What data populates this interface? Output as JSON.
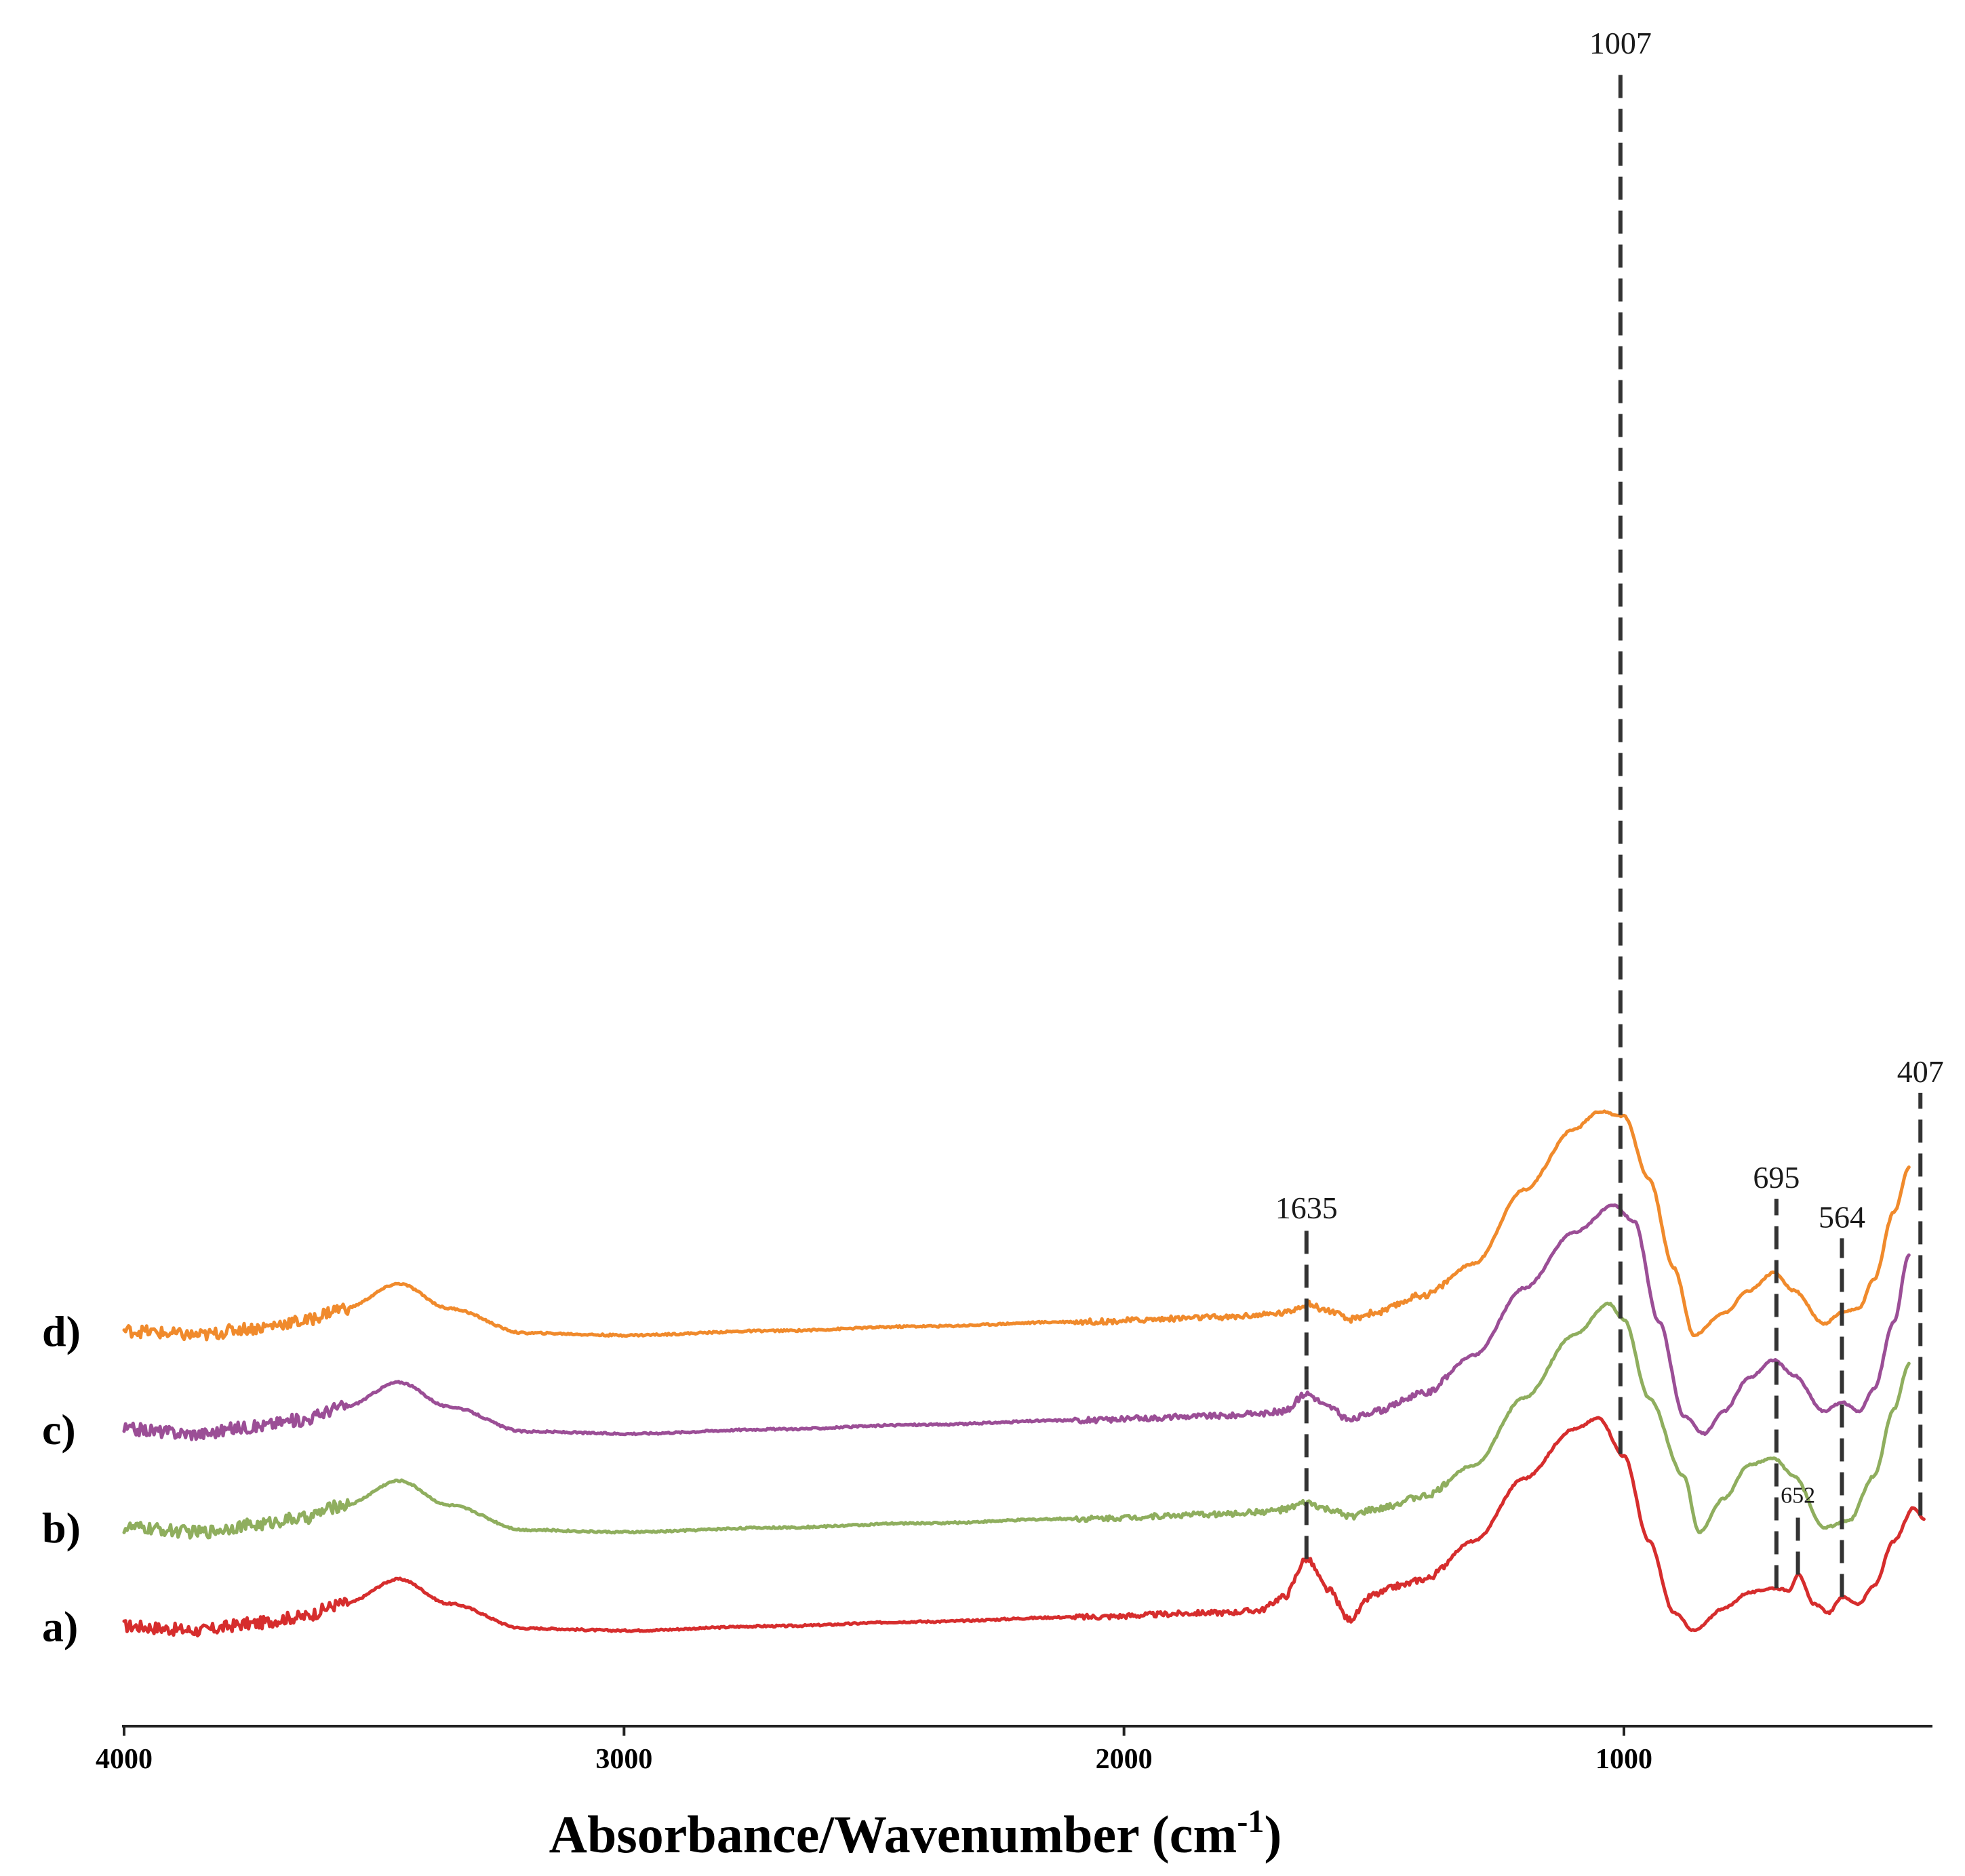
{
  "chart_data": {
    "type": "line",
    "title": "",
    "xlabel": "Absorbance/Wavenumber (cm",
    "xlabel_sup": "-1",
    "xlabel_close": ")",
    "ylabel": "",
    "xlim": [
      4000,
      350
    ],
    "xticks": [
      {
        "value": 4000,
        "label": "4000"
      },
      {
        "value": 3000,
        "label": "3000"
      },
      {
        "value": 2000,
        "label": "2000"
      },
      {
        "value": 1000,
        "label": "1000"
      }
    ],
    "grid": false,
    "legend": "inline labels left",
    "peaks": [
      {
        "value": 1635,
        "label": "1635",
        "from_series": "a",
        "to_series": "d"
      },
      {
        "value": 1007,
        "label": "1007",
        "from_series": "a",
        "to_series": "top"
      },
      {
        "value": 695,
        "label": "695",
        "from_series": "a",
        "to_series": "d"
      },
      {
        "value": 652,
        "label": "652",
        "from_series": "a",
        "to_series": "a"
      },
      {
        "value": 564,
        "label": "564",
        "from_series": "a",
        "to_series": "d"
      },
      {
        "value": 407,
        "label": "407",
        "from_series": "a",
        "to_series": "d"
      }
    ],
    "series": [
      {
        "name": "a)",
        "key": "a",
        "color": "#d62d2d",
        "offset": 0,
        "points": [
          [
            4000,
            0.02
          ],
          [
            3850,
            0.0
          ],
          [
            3750,
            0.03
          ],
          [
            3650,
            0.06
          ],
          [
            3560,
            0.12
          ],
          [
            3450,
            0.23
          ],
          [
            3350,
            0.12
          ],
          [
            3200,
            0.01
          ],
          [
            3000,
            0.0
          ],
          [
            2700,
            0.02
          ],
          [
            2400,
            0.04
          ],
          [
            2100,
            0.06
          ],
          [
            1800,
            0.08
          ],
          [
            1730,
            0.09
          ],
          [
            1680,
            0.15
          ],
          [
            1635,
            0.32
          ],
          [
            1590,
            0.18
          ],
          [
            1550,
            0.05
          ],
          [
            1500,
            0.16
          ],
          [
            1450,
            0.2
          ],
          [
            1400,
            0.23
          ],
          [
            1300,
            0.4
          ],
          [
            1200,
            0.68
          ],
          [
            1100,
            0.9
          ],
          [
            1050,
            0.95
          ],
          [
            1000,
            0.78
          ],
          [
            950,
            0.4
          ],
          [
            900,
            0.08
          ],
          [
            860,
            0.0
          ],
          [
            800,
            0.1
          ],
          [
            750,
            0.17
          ],
          [
            700,
            0.19
          ],
          [
            670,
            0.18
          ],
          [
            652,
            0.25
          ],
          [
            620,
            0.12
          ],
          [
            590,
            0.08
          ],
          [
            564,
            0.15
          ],
          [
            530,
            0.12
          ],
          [
            500,
            0.2
          ],
          [
            460,
            0.4
          ],
          [
            420,
            0.55
          ],
          [
            400,
            0.5
          ]
        ]
      },
      {
        "name": "b)",
        "key": "b",
        "color": "#8fae5e",
        "offset": 0.44,
        "points": [
          [
            4000,
            0.02
          ],
          [
            3850,
            0.0
          ],
          [
            3750,
            0.03
          ],
          [
            3650,
            0.06
          ],
          [
            3560,
            0.12
          ],
          [
            3450,
            0.23
          ],
          [
            3350,
            0.12
          ],
          [
            3200,
            0.01
          ],
          [
            3000,
            0.0
          ],
          [
            2700,
            0.02
          ],
          [
            2400,
            0.04
          ],
          [
            2100,
            0.06
          ],
          [
            1800,
            0.08
          ],
          [
            1730,
            0.09
          ],
          [
            1680,
            0.1
          ],
          [
            1635,
            0.13
          ],
          [
            1590,
            0.1
          ],
          [
            1550,
            0.07
          ],
          [
            1500,
            0.1
          ],
          [
            1400,
            0.16
          ],
          [
            1300,
            0.3
          ],
          [
            1200,
            0.6
          ],
          [
            1100,
            0.88
          ],
          [
            1030,
            1.02
          ],
          [
            1000,
            0.95
          ],
          [
            950,
            0.6
          ],
          [
            880,
            0.25
          ],
          [
            850,
            0.0
          ],
          [
            800,
            0.15
          ],
          [
            750,
            0.3
          ],
          [
            700,
            0.33
          ],
          [
            660,
            0.25
          ],
          [
            600,
            0.02
          ],
          [
            550,
            0.05
          ],
          [
            500,
            0.25
          ],
          [
            460,
            0.55
          ],
          [
            430,
            0.75
          ]
        ]
      },
      {
        "name": "c)",
        "key": "c",
        "color": "#9b4e96",
        "offset": 0.88,
        "points": [
          [
            4000,
            0.02
          ],
          [
            3850,
            0.0
          ],
          [
            3750,
            0.03
          ],
          [
            3650,
            0.06
          ],
          [
            3560,
            0.12
          ],
          [
            3450,
            0.23
          ],
          [
            3350,
            0.12
          ],
          [
            3200,
            0.01
          ],
          [
            3000,
            0.0
          ],
          [
            2700,
            0.02
          ],
          [
            2400,
            0.04
          ],
          [
            2100,
            0.06
          ],
          [
            1800,
            0.08
          ],
          [
            1730,
            0.09
          ],
          [
            1680,
            0.1
          ],
          [
            1635,
            0.18
          ],
          [
            1590,
            0.12
          ],
          [
            1550,
            0.06
          ],
          [
            1500,
            0.1
          ],
          [
            1400,
            0.18
          ],
          [
            1300,
            0.35
          ],
          [
            1200,
            0.65
          ],
          [
            1100,
            0.9
          ],
          [
            1020,
            1.02
          ],
          [
            980,
            0.95
          ],
          [
            930,
            0.5
          ],
          [
            880,
            0.08
          ],
          [
            840,
            0.0
          ],
          [
            800,
            0.1
          ],
          [
            750,
            0.25
          ],
          [
            700,
            0.33
          ],
          [
            660,
            0.26
          ],
          [
            600,
            0.1
          ],
          [
            564,
            0.14
          ],
          [
            530,
            0.1
          ],
          [
            500,
            0.2
          ],
          [
            460,
            0.5
          ],
          [
            430,
            0.8
          ]
        ]
      },
      {
        "name": "d)",
        "key": "d",
        "color": "#f08a2c",
        "offset": 1.32,
        "points": [
          [
            4000,
            0.02
          ],
          [
            3850,
            0.0
          ],
          [
            3750,
            0.03
          ],
          [
            3650,
            0.06
          ],
          [
            3560,
            0.12
          ],
          [
            3450,
            0.23
          ],
          [
            3350,
            0.12
          ],
          [
            3200,
            0.01
          ],
          [
            3000,
            0.0
          ],
          [
            2700,
            0.02
          ],
          [
            2400,
            0.04
          ],
          [
            2100,
            0.06
          ],
          [
            1800,
            0.08
          ],
          [
            1730,
            0.09
          ],
          [
            1680,
            0.1
          ],
          [
            1635,
            0.14
          ],
          [
            1590,
            0.11
          ],
          [
            1550,
            0.07
          ],
          [
            1500,
            0.1
          ],
          [
            1400,
            0.18
          ],
          [
            1300,
            0.32
          ],
          [
            1200,
            0.65
          ],
          [
            1100,
            0.92
          ],
          [
            1050,
            1.0
          ],
          [
            1000,
            0.98
          ],
          [
            950,
            0.7
          ],
          [
            900,
            0.3
          ],
          [
            860,
            0.0
          ],
          [
            800,
            0.1
          ],
          [
            750,
            0.2
          ],
          [
            700,
            0.28
          ],
          [
            660,
            0.2
          ],
          [
            600,
            0.05
          ],
          [
            564,
            0.1
          ],
          [
            530,
            0.12
          ],
          [
            500,
            0.25
          ],
          [
            460,
            0.55
          ],
          [
            430,
            0.75
          ]
        ]
      }
    ]
  }
}
